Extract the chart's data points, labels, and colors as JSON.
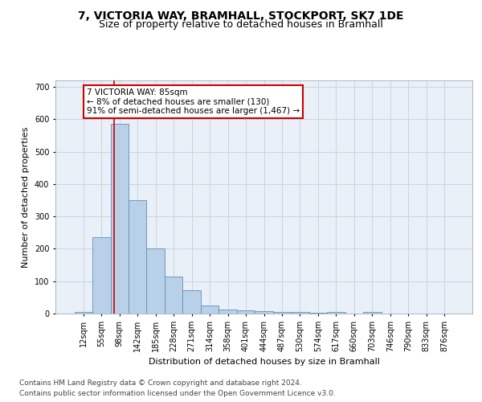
{
  "title": "7, VICTORIA WAY, BRAMHALL, STOCKPORT, SK7 1DE",
  "subtitle": "Size of property relative to detached houses in Bramhall",
  "xlabel": "Distribution of detached houses by size in Bramhall",
  "ylabel": "Number of detached properties",
  "bin_labels": [
    "12sqm",
    "55sqm",
    "98sqm",
    "142sqm",
    "185sqm",
    "228sqm",
    "271sqm",
    "314sqm",
    "358sqm",
    "401sqm",
    "444sqm",
    "487sqm",
    "530sqm",
    "574sqm",
    "617sqm",
    "660sqm",
    "703sqm",
    "746sqm",
    "790sqm",
    "833sqm",
    "876sqm"
  ],
  "bar_heights": [
    5,
    235,
    585,
    350,
    200,
    115,
    72,
    25,
    13,
    10,
    8,
    5,
    5,
    3,
    5,
    0,
    5,
    0,
    0,
    0,
    0
  ],
  "bar_color": "#b8d0e8",
  "bar_edgecolor": "#6090b8",
  "property_sqm": 85,
  "annotation_text": "7 VICTORIA WAY: 85sqm\n← 8% of detached houses are smaller (130)\n91% of semi-detached houses are larger (1,467) →",
  "annotation_box_color": "#ffffff",
  "annotation_box_edgecolor": "#cc0000",
  "vline_color": "#cc0000",
  "ylim": [
    0,
    720
  ],
  "yticks": [
    0,
    100,
    200,
    300,
    400,
    500,
    600,
    700
  ],
  "footer_line1": "Contains HM Land Registry data © Crown copyright and database right 2024.",
  "footer_line2": "Contains public sector information licensed under the Open Government Licence v3.0.",
  "fig_bg_color": "#ffffff",
  "plot_bg_color": "#eaf0f8",
  "grid_color": "#c8d4e4",
  "title_fontsize": 10,
  "subtitle_fontsize": 9,
  "axis_label_fontsize": 8,
  "tick_fontsize": 7,
  "annotation_fontsize": 7.5,
  "footer_fontsize": 6.5
}
